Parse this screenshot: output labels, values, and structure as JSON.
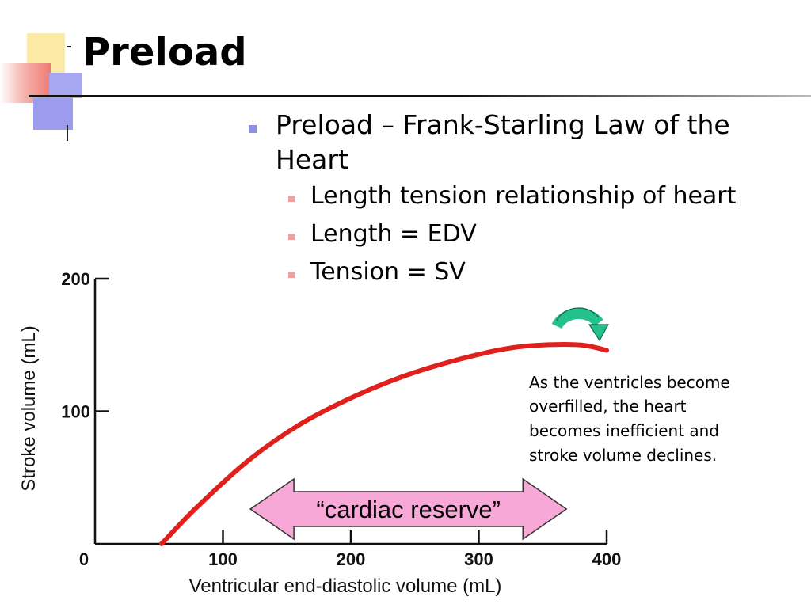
{
  "title": "Preload",
  "bullets": {
    "main": "Preload – Frank-Starling Law of the Heart",
    "sub": [
      "Length tension relationship of heart",
      "Length = EDV",
      "Tension = SV"
    ]
  },
  "chart_data": {
    "type": "line",
    "xlabel": "Ventricular end-diastolic volume (mL)",
    "ylabel": "Stroke volume (mL)",
    "xlim": [
      0,
      400
    ],
    "ylim": [
      0,
      200
    ],
    "x_ticks": [
      100,
      200,
      300,
      400
    ],
    "y_ticks": [
      100,
      200
    ],
    "origin_label": "0",
    "x_tick_labels": [
      "100",
      "200",
      "300",
      "400"
    ],
    "y_tick_labels": [
      "100",
      "200"
    ],
    "grid": false,
    "series": [
      {
        "color": "#e0201c",
        "x": [
          52,
          80,
          120,
          160,
          200,
          240,
          280,
          320,
          350,
          380,
          400
        ],
        "y": [
          0,
          28,
          63,
          90,
          110,
          126,
          138,
          147,
          150,
          150,
          146
        ]
      }
    ],
    "annotations": {
      "overfill_note": [
        "As the ventricles become",
        "overfilled, the heart",
        "becomes inefficient and",
        "stroke volume declines."
      ],
      "reserve_label": "“cardiac reserve”",
      "reserve_range": [
        140,
        350
      ]
    }
  },
  "colors": {
    "curve": "#e0201c",
    "reserve_fill": "#f7a8d6",
    "curl_arrow": "#25c08e"
  }
}
